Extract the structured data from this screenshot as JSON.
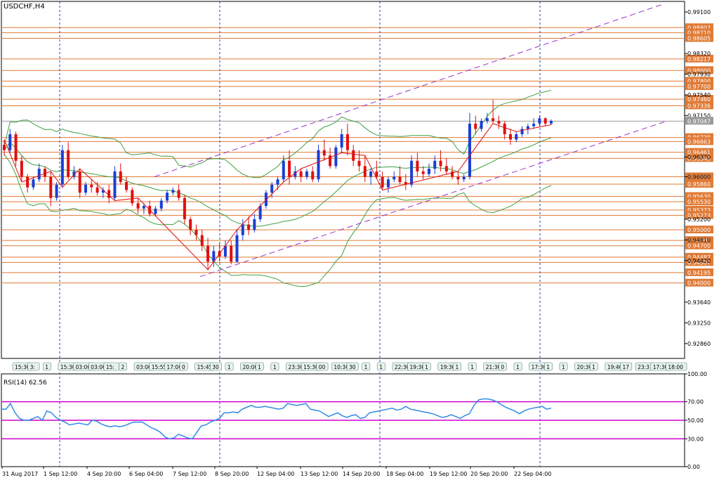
{
  "window": {
    "title": "USDCHF,H4"
  },
  "indicator": {
    "label": "RSI(14) 62.56"
  },
  "colors": {
    "bull": "#1a3fd6",
    "bear": "#e01010",
    "level_line": "#e07a35",
    "level_label_bg": "#e07a35",
    "current_price_bg": "#9a9a9a",
    "bollinger": "#3fa03f",
    "channel": "#9b30c8",
    "rsi_line": "#2e8ae6",
    "rsi_levels": "#d000d0",
    "zigzag": "#e01010",
    "time_sep": "#1f3fd0"
  },
  "chart_data": [
    {
      "type": "candlestick",
      "symbol": "USDCHF",
      "timeframe": "H4",
      "ylim": [
        0.9258,
        0.993
      ],
      "y_ticks": [
        "0.99100",
        "0.98320",
        "0.97930",
        "0.97540",
        "0.97150",
        "0.96370",
        "0.96000",
        "0.95200",
        "0.94810",
        "0.94420",
        "0.93640",
        "0.93250",
        "0.92860"
      ],
      "current_price": "0.97047",
      "levels": [
        "0.98807",
        "0.98710",
        "0.98605",
        "0.98217",
        "0.98000",
        "0.97800",
        "0.97700",
        "0.97460",
        "0.97336",
        "0.96739",
        "0.96663",
        "0.96461",
        "0.96345",
        "0.96000",
        "0.95860",
        "0.95630",
        "0.95530",
        "0.95373",
        "0.95273",
        "0.95000",
        "0.94800",
        "0.94700",
        "0.94487",
        "0.94387",
        "0.94195",
        "0.94000"
      ],
      "x_labels": [
        "31 Aug 2017",
        "1 Sep 12:00",
        "4 Sep 20:00",
        "6 Sep 04:00",
        "7 Sep 12:00",
        "8 Sep 20:00",
        "12 Sep 04:00",
        "13 Sep 12:00",
        "14 Sep 20:00",
        "18 Sep 04:00",
        "19 Sep 12:00",
        "20 Sep 20:00",
        "22 Sep 04:00"
      ],
      "time_labels": [
        "15:30",
        "3:",
        "1",
        "15:30",
        "03:00",
        "03:00",
        "15:",
        "2",
        "03:00",
        "15:55",
        "17:00",
        "0",
        "15:45",
        "30",
        "1",
        "20:00",
        "1",
        "1",
        "23:30",
        "15:30",
        "00",
        "10:30",
        "30",
        "1",
        "1",
        "22:30",
        "19:30",
        "1",
        "19:30",
        "1",
        "1",
        "21:30",
        "0",
        "1",
        "17:30",
        "1",
        "1",
        "20:30",
        "1",
        "19:40",
        "17",
        "23:3",
        "17:30",
        "18:00"
      ],
      "candles": [
        [
          0.966,
          0.967,
          0.964,
          0.965
        ],
        [
          0.965,
          0.969,
          0.9645,
          0.968
        ],
        [
          0.968,
          0.9685,
          0.962,
          0.963
        ],
        [
          0.963,
          0.964,
          0.959,
          0.96
        ],
        [
          0.96,
          0.9605,
          0.957,
          0.958
        ],
        [
          0.958,
          0.96,
          0.9575,
          0.9595
        ],
        [
          0.9595,
          0.9625,
          0.959,
          0.9615
        ],
        [
          0.9615,
          0.962,
          0.959,
          0.96
        ],
        [
          0.96,
          0.961,
          0.9545,
          0.956
        ],
        [
          0.956,
          0.959,
          0.9555,
          0.9585
        ],
        [
          0.9585,
          0.966,
          0.958,
          0.965
        ],
        [
          0.965,
          0.9665,
          0.9595,
          0.96
        ],
        [
          0.96,
          0.962,
          0.9595,
          0.961
        ],
        [
          0.961,
          0.9615,
          0.956,
          0.957
        ],
        [
          0.957,
          0.959,
          0.9565,
          0.9585
        ],
        [
          0.9585,
          0.9595,
          0.957,
          0.958
        ],
        [
          0.958,
          0.959,
          0.9565,
          0.957
        ],
        [
          0.957,
          0.958,
          0.956,
          0.9575
        ],
        [
          0.9575,
          0.9585,
          0.955,
          0.956
        ],
        [
          0.956,
          0.962,
          0.9555,
          0.961
        ],
        [
          0.961,
          0.9625,
          0.9585,
          0.959
        ],
        [
          0.959,
          0.96,
          0.957,
          0.9575
        ],
        [
          0.9575,
          0.958,
          0.9545,
          0.955
        ],
        [
          0.955,
          0.956,
          0.953,
          0.954
        ],
        [
          0.954,
          0.955,
          0.953,
          0.9545
        ],
        [
          0.9545,
          0.9555,
          0.9525,
          0.953
        ],
        [
          0.953,
          0.9545,
          0.9525,
          0.954
        ],
        [
          0.954,
          0.956,
          0.9535,
          0.9555
        ],
        [
          0.9555,
          0.9575,
          0.955,
          0.957
        ],
        [
          0.957,
          0.958,
          0.9565,
          0.9575
        ],
        [
          0.9575,
          0.9585,
          0.9555,
          0.956
        ],
        [
          0.956,
          0.9565,
          0.951,
          0.952
        ],
        [
          0.952,
          0.9525,
          0.949,
          0.95
        ],
        [
          0.95,
          0.951,
          0.948,
          0.949
        ],
        [
          0.949,
          0.95,
          0.946,
          0.947
        ],
        [
          0.947,
          0.9485,
          0.9425,
          0.944
        ],
        [
          0.944,
          0.947,
          0.943,
          0.946
        ],
        [
          0.946,
          0.9475,
          0.944,
          0.945
        ],
        [
          0.945,
          0.948,
          0.9445,
          0.947
        ],
        [
          0.947,
          0.948,
          0.9435,
          0.944
        ],
        [
          0.944,
          0.95,
          0.9438,
          0.949
        ],
        [
          0.949,
          0.952,
          0.948,
          0.951
        ],
        [
          0.951,
          0.9525,
          0.949,
          0.95
        ],
        [
          0.95,
          0.953,
          0.9495,
          0.952
        ],
        [
          0.952,
          0.955,
          0.9515,
          0.9545
        ],
        [
          0.9545,
          0.9575,
          0.954,
          0.957
        ],
        [
          0.957,
          0.959,
          0.956,
          0.9585
        ],
        [
          0.9585,
          0.96,
          0.9575,
          0.9595
        ],
        [
          0.9595,
          0.964,
          0.959,
          0.963
        ],
        [
          0.963,
          0.965,
          0.9585,
          0.96
        ],
        [
          0.96,
          0.962,
          0.9595,
          0.961
        ],
        [
          0.961,
          0.9615,
          0.959,
          0.96
        ],
        [
          0.96,
          0.9615,
          0.9595,
          0.961
        ],
        [
          0.961,
          0.962,
          0.959,
          0.9595
        ],
        [
          0.9595,
          0.966,
          0.959,
          0.965
        ],
        [
          0.965,
          0.967,
          0.963,
          0.964
        ],
        [
          0.964,
          0.9655,
          0.9615,
          0.962
        ],
        [
          0.962,
          0.966,
          0.9615,
          0.9655
        ],
        [
          0.9655,
          0.969,
          0.9645,
          0.968
        ],
        [
          0.968,
          0.97,
          0.964,
          0.965
        ],
        [
          0.965,
          0.966,
          0.962,
          0.963
        ],
        [
          0.963,
          0.965,
          0.961,
          0.962
        ],
        [
          0.962,
          0.964,
          0.959,
          0.96
        ],
        [
          0.96,
          0.9615,
          0.9585,
          0.961
        ],
        [
          0.961,
          0.963,
          0.9595,
          0.96
        ],
        [
          0.96,
          0.961,
          0.9575,
          0.958
        ],
        [
          0.958,
          0.96,
          0.957,
          0.9595
        ],
        [
          0.9595,
          0.961,
          0.959,
          0.96
        ],
        [
          0.96,
          0.962,
          0.9585,
          0.959
        ],
        [
          0.959,
          0.9605,
          0.9575,
          0.9585
        ],
        [
          0.9585,
          0.964,
          0.958,
          0.963
        ],
        [
          0.963,
          0.9645,
          0.96,
          0.961
        ],
        [
          0.961,
          0.962,
          0.9595,
          0.9605
        ],
        [
          0.9605,
          0.9625,
          0.96,
          0.9615
        ],
        [
          0.9615,
          0.964,
          0.9605,
          0.963
        ],
        [
          0.963,
          0.965,
          0.961,
          0.962
        ],
        [
          0.962,
          0.9635,
          0.9605,
          0.961
        ],
        [
          0.961,
          0.962,
          0.9595,
          0.96
        ],
        [
          0.96,
          0.961,
          0.9585,
          0.9595
        ],
        [
          0.9595,
          0.9605,
          0.959,
          0.96
        ],
        [
          0.96,
          0.972,
          0.9595,
          0.97
        ],
        [
          0.97,
          0.9715,
          0.968,
          0.969
        ],
        [
          0.969,
          0.971,
          0.9685,
          0.9705
        ],
        [
          0.9705,
          0.972,
          0.97,
          0.971
        ],
        [
          0.971,
          0.9745,
          0.97,
          0.9705
        ],
        [
          0.9705,
          0.9715,
          0.969,
          0.97
        ],
        [
          0.97,
          0.9705,
          0.967,
          0.968
        ],
        [
          0.968,
          0.969,
          0.966,
          0.967
        ],
        [
          0.967,
          0.9685,
          0.9665,
          0.968
        ],
        [
          0.968,
          0.9695,
          0.9675,
          0.969
        ],
        [
          0.969,
          0.97,
          0.968,
          0.9695
        ],
        [
          0.9695,
          0.971,
          0.969,
          0.97
        ],
        [
          0.97,
          0.9715,
          0.9695,
          0.971
        ],
        [
          0.971,
          0.9712,
          0.9695,
          0.97
        ],
        [
          0.97,
          0.9708,
          0.9698,
          0.9705
        ]
      ]
    },
    {
      "type": "line",
      "name": "RSI(14) 62.56",
      "ylim": [
        0,
        100
      ],
      "y_ticks": [
        "100.00",
        "70.00",
        "50.00",
        "30.00",
        "0.00"
      ],
      "levels": [
        70,
        50,
        30
      ],
      "values": [
        62,
        62,
        68,
        58,
        52,
        50,
        50,
        52,
        54,
        50,
        60,
        58,
        53,
        50,
        48,
        45,
        46,
        47,
        46,
        45,
        50,
        49,
        46,
        44,
        43,
        44,
        43,
        44,
        46,
        48,
        48,
        48,
        45,
        42,
        40,
        37,
        32,
        30,
        31,
        35,
        33,
        31,
        30,
        37,
        44,
        45,
        48,
        50,
        52,
        58,
        58,
        59,
        58,
        62,
        64,
        66,
        64,
        64,
        65,
        64,
        63,
        62,
        63,
        68,
        67,
        66,
        67,
        68,
        62,
        61,
        60,
        57,
        54,
        56,
        58,
        55,
        53,
        55,
        56,
        52,
        53,
        58,
        59,
        60,
        61,
        62,
        63,
        61,
        62,
        65,
        62,
        61,
        60,
        59,
        58,
        57,
        55,
        53,
        54,
        56,
        54,
        52,
        55,
        57,
        66,
        72,
        73,
        73,
        72,
        70,
        67,
        64,
        62,
        60,
        57,
        60,
        62,
        63,
        64,
        65,
        62,
        63
      ]
    }
  ]
}
